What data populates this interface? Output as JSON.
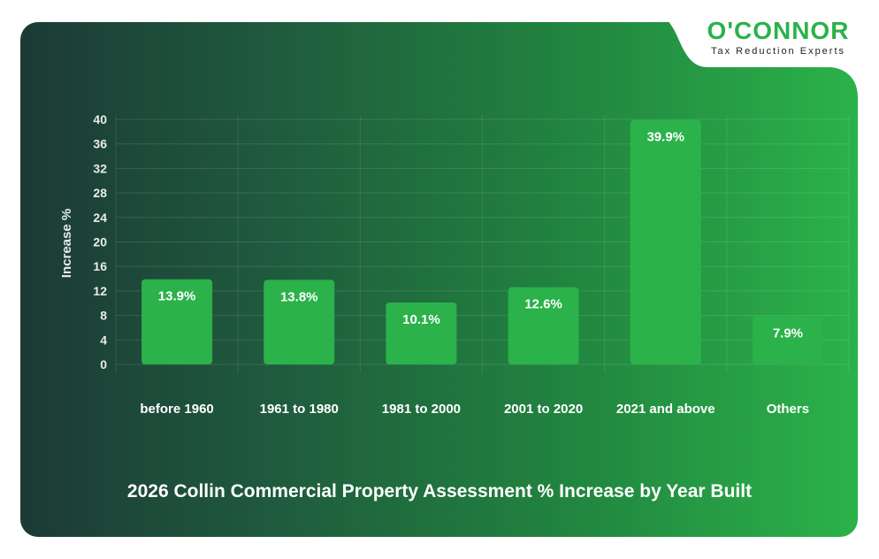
{
  "brand": {
    "name": "O'CONNOR",
    "tagline": "Tax Reduction Experts",
    "color": "#2bb24a"
  },
  "chart_data": {
    "type": "bar",
    "title": "2026 Collin Commercial Property Assessment % Increase by Year Built",
    "xlabel": "",
    "ylabel": "Increase %",
    "ylim": [
      0,
      40
    ],
    "yticks": [
      0,
      4,
      8,
      12,
      16,
      20,
      24,
      28,
      32,
      36,
      40
    ],
    "grid": true,
    "categories": [
      "before 1960",
      "1961 to 1980",
      "1981 to 2000",
      "2001 to 2020",
      "2021 and above",
      "Others"
    ],
    "values": [
      13.9,
      13.8,
      10.1,
      12.6,
      39.9,
      7.9
    ],
    "data_labels": [
      "13.9%",
      "13.8%",
      "10.1%",
      "12.6%",
      "39.9%",
      "7.9%"
    ],
    "bar_color": "#2bb24a"
  }
}
